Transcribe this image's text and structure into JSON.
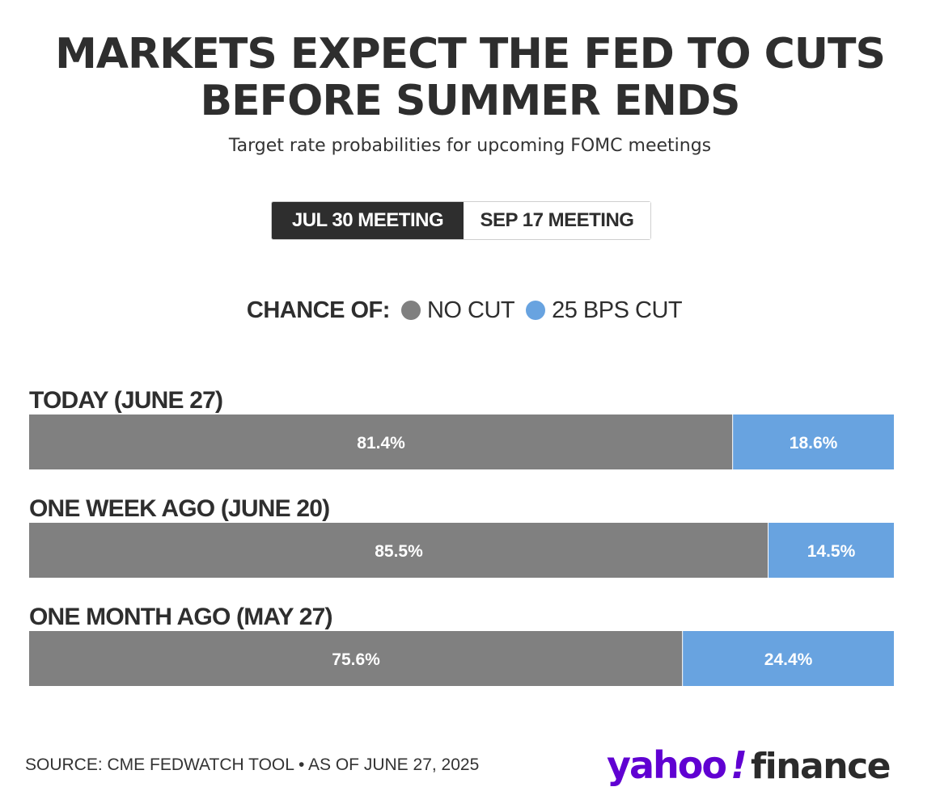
{
  "header": {
    "title_line1": "MARKETS EXPECT THE FED TO CUTS",
    "title_line2": "BEFORE SUMMER ENDS",
    "subtitle": "Target rate probabilities for upcoming FOMC meetings"
  },
  "tabs": [
    {
      "label": "JUL 30 MEETING",
      "active": true
    },
    {
      "label": "SEP 17 MEETING",
      "active": false
    }
  ],
  "legend": {
    "title": "CHANCE OF:",
    "items": [
      {
        "label": "NO CUT",
        "color": "#808080"
      },
      {
        "label": "25 BPS CUT",
        "color": "#68a3e0"
      }
    ]
  },
  "chart_data": {
    "type": "bar",
    "orientation": "horizontal",
    "stacked": true,
    "categories": [
      "TODAY (JUNE 27)",
      "ONE WEEK AGO (JUNE 20)",
      "ONE MONTH AGO (MAY 27)"
    ],
    "series": [
      {
        "name": "NO CUT",
        "color": "#808080",
        "values": [
          81.4,
          85.5,
          75.6
        ],
        "labels": [
          "81.4%",
          "85.5%",
          "75.6%"
        ]
      },
      {
        "name": "25 BPS CUT",
        "color": "#68a3e0",
        "values": [
          18.6,
          14.5,
          24.4
        ],
        "labels": [
          "18.6%",
          "14.5%",
          "24.4%"
        ]
      }
    ],
    "xlim": [
      0,
      100
    ],
    "legend_position": "top"
  },
  "footer": {
    "source": "SOURCE: CME FEDWATCH TOOL • AS OF JUNE 27, 2025",
    "logo_text_1": "yahoo",
    "logo_text_2": "!",
    "logo_text_3": "finance",
    "logo_color_1": "#6001d2",
    "logo_color_2": "#2b2b2b"
  }
}
